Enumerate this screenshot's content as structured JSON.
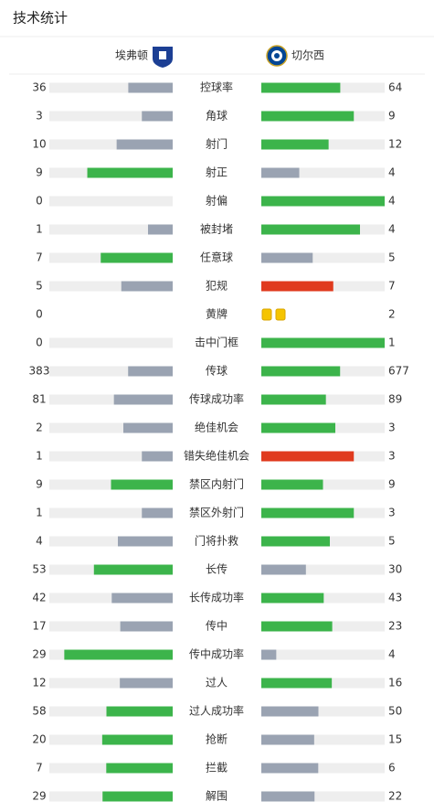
{
  "header": {
    "title": "技术统计",
    "home_team": "埃弗顿",
    "away_team": "切尔西"
  },
  "stats": {
    "rows": [
      {
        "label": "控球率",
        "home": 36,
        "away": 64,
        "colors": [
          "#9aa3b2",
          "#3cb44b"
        ]
      },
      {
        "label": "角球",
        "home": 3,
        "away": 9,
        "colors": [
          "#9aa3b2",
          "#3cb44b"
        ]
      },
      {
        "label": "射门",
        "home": 10,
        "away": 12,
        "colors": [
          "#9aa3b2",
          "#3cb44b"
        ]
      },
      {
        "label": "射正",
        "home": 9,
        "away": 4,
        "colors": [
          "#3cb44b",
          "#9aa3b2"
        ]
      },
      {
        "label": "射偏",
        "home": 0,
        "away": 4,
        "colors": [
          "#9aa3b2",
          "#3cb44b"
        ]
      },
      {
        "label": "被封堵",
        "home": 1,
        "away": 4,
        "colors": [
          "#9aa3b2",
          "#3cb44b"
        ]
      },
      {
        "label": "任意球",
        "home": 7,
        "away": 5,
        "colors": [
          "#3cb44b",
          "#9aa3b2"
        ]
      },
      {
        "label": "犯规",
        "home": 5,
        "away": 7,
        "colors": [
          "#9aa3b2",
          "#e03a1e"
        ]
      },
      {
        "label": "黄牌",
        "home": 0,
        "away": 2,
        "display": "cards",
        "colors": [
          "#f5c400",
          "#f5c400"
        ]
      },
      {
        "label": "击中门框",
        "home": 0,
        "away": 1,
        "colors": [
          "#9aa3b2",
          "#3cb44b"
        ]
      },
      {
        "label": "传球",
        "home": 383,
        "away": 677,
        "colors": [
          "#9aa3b2",
          "#3cb44b"
        ]
      },
      {
        "label": "传球成功率",
        "home": 81,
        "away": 89,
        "colors": [
          "#9aa3b2",
          "#3cb44b"
        ]
      },
      {
        "label": "绝佳机会",
        "home": 2,
        "away": 3,
        "colors": [
          "#9aa3b2",
          "#3cb44b"
        ]
      },
      {
        "label": "错失绝佳机会",
        "home": 1,
        "away": 3,
        "colors": [
          "#9aa3b2",
          "#e03a1e"
        ]
      },
      {
        "label": "禁区内射门",
        "home": 9,
        "away": 9,
        "colors": [
          "#3cb44b",
          "#3cb44b"
        ]
      },
      {
        "label": "禁区外射门",
        "home": 1,
        "away": 3,
        "colors": [
          "#9aa3b2",
          "#3cb44b"
        ]
      },
      {
        "label": "门将扑救",
        "home": 4,
        "away": 5,
        "colors": [
          "#9aa3b2",
          "#3cb44b"
        ]
      },
      {
        "label": "长传",
        "home": 53,
        "away": 30,
        "colors": [
          "#3cb44b",
          "#9aa3b2"
        ]
      },
      {
        "label": "长传成功率",
        "home": 42,
        "away": 43,
        "colors": [
          "#9aa3b2",
          "#3cb44b"
        ]
      },
      {
        "label": "传中",
        "home": 17,
        "away": 23,
        "colors": [
          "#9aa3b2",
          "#3cb44b"
        ]
      },
      {
        "label": "传中成功率",
        "home": 29,
        "away": 4,
        "colors": [
          "#3cb44b",
          "#9aa3b2"
        ]
      },
      {
        "label": "过人",
        "home": 12,
        "away": 16,
        "colors": [
          "#9aa3b2",
          "#3cb44b"
        ]
      },
      {
        "label": "过人成功率",
        "home": 58,
        "away": 50,
        "colors": [
          "#3cb44b",
          "#9aa3b2"
        ]
      },
      {
        "label": "抢断",
        "home": 20,
        "away": 15,
        "colors": [
          "#3cb44b",
          "#9aa3b2"
        ]
      },
      {
        "label": "拦截",
        "home": 7,
        "away": 6,
        "colors": [
          "#3cb44b",
          "#9aa3b2"
        ]
      },
      {
        "label": "解围",
        "home": 29,
        "away": 22,
        "colors": [
          "#3cb44b",
          "#9aa3b2"
        ]
      }
    ]
  }
}
